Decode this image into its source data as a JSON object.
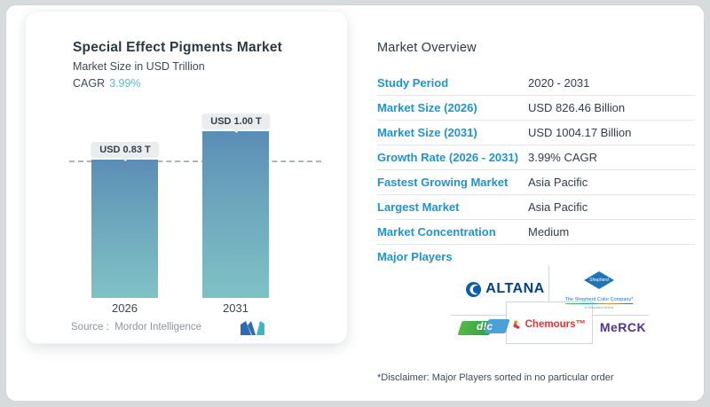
{
  "chart_card": {
    "title": "Special Effect Pigments Market",
    "subtitle": "Market Size in USD Trillion",
    "cagr_label": "CAGR",
    "cagr_value": "3.99%",
    "source_label": "Source :",
    "source_value": "Mordor Intelligence",
    "brand": "Mordor Intelligence"
  },
  "chart_data": {
    "type": "bar",
    "categories": [
      "2026",
      "2031"
    ],
    "values": [
      0.83,
      1.0
    ],
    "bar_labels": [
      "USD 0.83 T",
      "USD 1.00 T"
    ],
    "title": "Special Effect Pigments Market",
    "xlabel": "",
    "ylabel": "Market Size in USD Trillion",
    "ylim": [
      0,
      1.05
    ],
    "reference_line_y": 0.83,
    "grid": false,
    "legend": false,
    "bar_color_top": "#5a8eb5",
    "bar_color_bottom": "#7fc2c5"
  },
  "overview": {
    "title": "Market Overview",
    "rows": [
      {
        "label": "Study Period",
        "value": "2020 - 2031"
      },
      {
        "label": "Market Size (2026)",
        "value": "USD 826.46 Billion"
      },
      {
        "label": "Market Size (2031)",
        "value": "USD 1004.17 Billion"
      },
      {
        "label": "Growth Rate (2026 - 2031)",
        "value": "3.99% CAGR"
      },
      {
        "label": "Fastest Growing Market",
        "value": "Asia Pacific"
      },
      {
        "label": "Largest Market",
        "value": "Asia Pacific"
      },
      {
        "label": "Market Concentration",
        "value": "Medium"
      }
    ],
    "major_players_label": "Major Players",
    "players": [
      {
        "name": "ALTANA",
        "display": "ALTANA"
      },
      {
        "name": "Shepherd Color",
        "display": "Shepherd",
        "subtitle": "The Shepherd Color Company*",
        "tiny": "A Shepherd brand"
      },
      {
        "name": "DIC",
        "display": "d!c"
      },
      {
        "name": "Chemours",
        "display": "Chemours™"
      },
      {
        "name": "Merck",
        "display": "MeRCK"
      }
    ],
    "disclaimer": "*Disclaimer: Major Players sorted in no particular order"
  },
  "colors": {
    "accent_blue": "#2394c5",
    "cagr_teal": "#5fb9ca",
    "value_dark": "#2f3e4c",
    "altana_blue": "#004289",
    "shepherd_blue": "#1b75bb",
    "dic_green": "#3fa944",
    "chemours_red": "#e4342f",
    "merck_purple": "#503291",
    "bar_top": "#5a8eb5",
    "bar_bottom": "#7fc2c5"
  }
}
